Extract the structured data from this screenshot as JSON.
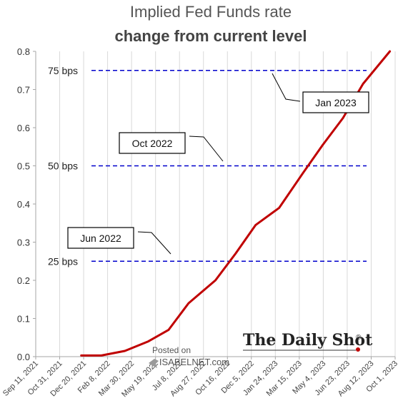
{
  "chart_data": {
    "type": "line",
    "title": "Implied Fed Funds rate",
    "subtitle": "change from current level",
    "xlabel": "",
    "ylabel": "",
    "ylim": [
      0,
      0.8
    ],
    "yticks": [
      "0.0",
      "0.1",
      "0.2",
      "0.3",
      "0.4",
      "0.5",
      "0.6",
      "0.7",
      "0.8"
    ],
    "x_tick_labels": [
      "Sep 11, 2021",
      "Oct 31, 2021",
      "Dec 20, 2021",
      "Feb 8, 2022",
      "Mar 30, 2022",
      "May 19, 2022",
      "Jul 8, 2022",
      "Aug 27, 2022",
      "Oct 16, 2022",
      "Dec 5, 2022",
      "Jan 24, 2023",
      "Mar 15, 2023",
      "May 4, 2023",
      "Jun 23, 2023",
      "Aug 12, 2023",
      "Oct 1, 2023"
    ],
    "grid": "vertical",
    "series": [
      {
        "color": "#c00000",
        "x": [
          "2021-12-15",
          "2022-01-26",
          "2022-03-16",
          "2022-05-04",
          "2022-06-15",
          "2022-07-27",
          "2022-09-21",
          "2022-11-02",
          "2022-12-14",
          "2023-02-01",
          "2023-03-22",
          "2023-05-03",
          "2023-06-14",
          "2023-07-26",
          "2023-09-20"
        ],
        "y": [
          0.003,
          0.003,
          0.015,
          0.04,
          0.07,
          0.14,
          0.2,
          0.27,
          0.345,
          0.39,
          0.48,
          0.555,
          0.625,
          0.715,
          0.8
        ]
      }
    ],
    "reference_lines": [
      {
        "label": "25 bps",
        "value": 0.25,
        "color": "#0000cc"
      },
      {
        "label": "50 bps",
        "value": 0.5,
        "color": "#0000cc"
      },
      {
        "label": "75 bps",
        "value": 0.75,
        "color": "#0000cc"
      }
    ],
    "annotations": [
      {
        "text": "Jun 2022"
      },
      {
        "text": "Oct 2022"
      },
      {
        "text": "Jan 2023"
      }
    ]
  },
  "watermark": {
    "posted_on": "Posted on",
    "site": "ISABELNET.com"
  },
  "brand": "The Daily Shot",
  "brand_mark": "®"
}
